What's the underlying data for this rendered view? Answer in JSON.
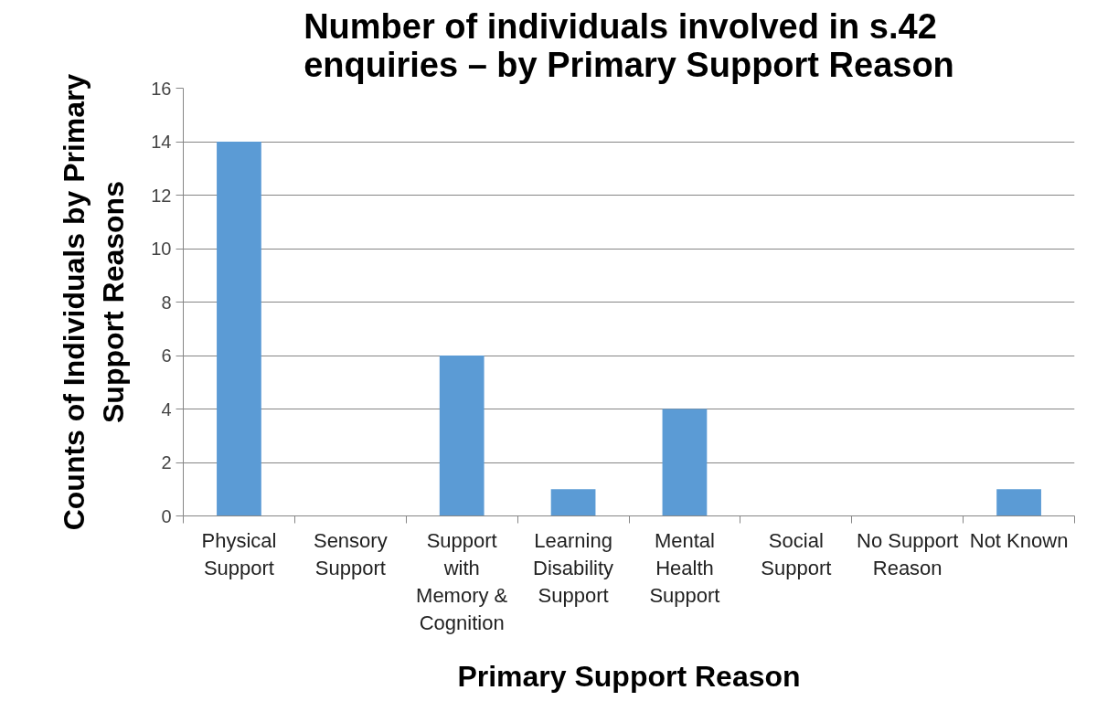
{
  "chart_data": {
    "type": "bar",
    "title": "Number of individuals involved in s.42 enquiries – by Primary Support Reason",
    "xlabel": "Primary Support Reason",
    "ylabel": "Counts of Individuals by Primary Support Reasons",
    "categories": [
      "Physical Support",
      "Sensory Support",
      "Support with Memory & Cognition",
      "Learning Disability Support",
      "Mental Health Support",
      "Social Support",
      "No Support Reason",
      "Not Known"
    ],
    "values": [
      14,
      0,
      6,
      1,
      4,
      0,
      0,
      1
    ],
    "color": "#5b9bd5",
    "ylim": [
      0,
      16
    ],
    "yticks": [
      0,
      2,
      4,
      6,
      8,
      10,
      12,
      14,
      16
    ],
    "grid": "y"
  }
}
